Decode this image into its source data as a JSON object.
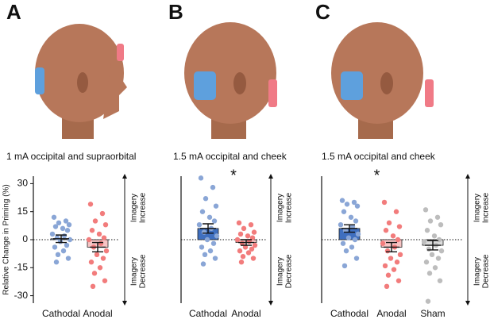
{
  "chart_data": [
    {
      "type": "bar",
      "panel": "A",
      "title": "1 mA occipital and supraorbital",
      "ylabel": "Relative Change in Priming (%)",
      "categories": [
        "Cathodal",
        "Anodal"
      ],
      "values": [
        0.5,
        -4
      ],
      "errors": [
        2,
        2.5
      ],
      "colors": [
        "#9db5e0",
        "#f7c4c4"
      ],
      "point_colors": [
        "#8aa6d6",
        "#f27c7c"
      ],
      "points": [
        [
          12,
          10,
          9,
          8,
          7,
          6,
          5,
          3,
          2,
          1,
          0,
          -1,
          -3,
          -4,
          -6,
          -8,
          -10,
          -12
        ],
        [
          19,
          14,
          10,
          8,
          5,
          3,
          1,
          0,
          -2,
          -4,
          -6,
          -8,
          -10,
          -12,
          -15,
          -18,
          -22,
          -25
        ]
      ],
      "ylim": [
        -34,
        34
      ],
      "yticks": [
        30,
        15,
        0,
        -15,
        -30
      ],
      "arrow_up": [
        "Imagery",
        "Increase"
      ],
      "arrow_down": [
        "Imagery",
        "Decrease"
      ]
    },
    {
      "type": "bar",
      "panel": "B",
      "title": "1.5 mA occipital and cheek",
      "significance": "*",
      "categories": [
        "Cathodal",
        "Anodal"
      ],
      "values": [
        6,
        -1.5
      ],
      "errors": [
        2.5,
        1.5
      ],
      "colors": [
        "#3f6fbf",
        "#f7c4c4"
      ],
      "point_colors": [
        "#8aa6d6",
        "#f27c7c"
      ],
      "points": [
        [
          33,
          28,
          22,
          18,
          15,
          12,
          10,
          8,
          6,
          4,
          2,
          0,
          -2,
          -4,
          -6,
          -8,
          -10,
          -13
        ],
        [
          9,
          8,
          6,
          4,
          3,
          2,
          1,
          0,
          -1,
          -2,
          -3,
          -4,
          -5,
          -6,
          -7,
          -9,
          -10,
          -12
        ]
      ],
      "ylim": [
        -34,
        34
      ],
      "arrow_up": [
        "Imagery",
        "Increase"
      ],
      "arrow_down": [
        "Imagery",
        "Decrease"
      ]
    },
    {
      "type": "bar",
      "panel": "C",
      "title": "1.5 mA occipital and cheek",
      "significance": "*",
      "categories": [
        "Cathodal",
        "Anodal",
        "Sham"
      ],
      "values": [
        6,
        -4,
        -3
      ],
      "errors": [
        2,
        2.5,
        2.5
      ],
      "colors": [
        "#3f6fbf",
        "#f7c4c4",
        "#dcdcdc"
      ],
      "point_colors": [
        "#8aa6d6",
        "#f27c7c",
        "#bdbdbd"
      ],
      "points": [
        [
          21,
          20,
          19,
          18,
          15,
          12,
          10,
          8,
          7,
          5,
          3,
          1,
          0,
          -2,
          -4,
          -6,
          -10,
          -14
        ],
        [
          20,
          15,
          9,
          7,
          5,
          2,
          0,
          -2,
          -4,
          -6,
          -8,
          -10,
          -12,
          -14,
          -16,
          -19,
          -22,
          -25
        ],
        [
          16,
          12,
          10,
          8,
          5,
          2,
          0,
          -1,
          -3,
          -5,
          -6,
          -8,
          -10,
          -12,
          -15,
          -18,
          -22,
          -33
        ]
      ],
      "ylim": [
        -34,
        34
      ],
      "arrow_up": [
        "Imagery",
        "Increase"
      ],
      "arrow_down": [
        "Imagery",
        "Decrease"
      ]
    }
  ]
}
